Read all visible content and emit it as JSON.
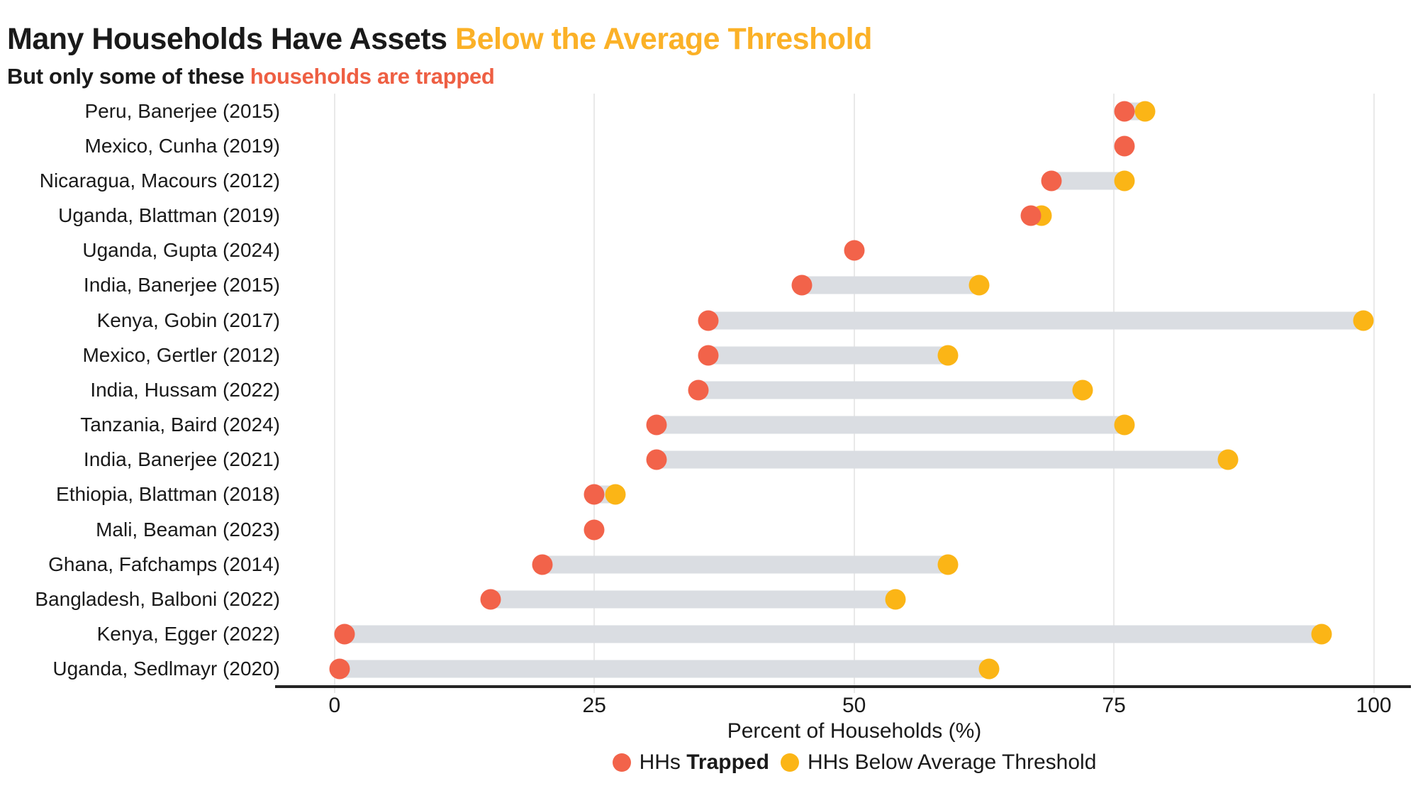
{
  "title": {
    "main": "Many Households Have Assets ",
    "highlight": "Below the Average Threshold"
  },
  "subtitle": {
    "main": "But only some of these ",
    "highlight": "households are trapped"
  },
  "colors": {
    "trapped": "#F2634A",
    "threshold": "#FBB516",
    "title_highlight": "#FBB127",
    "subtitle_highlight": "#EE5F43",
    "connector_bar": "#DADDE2",
    "gridline": "#E9E9E9",
    "axis_line": "#242424"
  },
  "axis": {
    "label": "Percent of Households (%)",
    "ticks": [
      0,
      25,
      50,
      75,
      100
    ]
  },
  "legend": {
    "items": [
      {
        "prefix": "HHs ",
        "bold": "Trapped",
        "color_key": "trapped"
      },
      {
        "prefix": "HHs Below Average Threshold",
        "bold": "",
        "color_key": "threshold"
      }
    ]
  },
  "chart_data": {
    "type": "scatter",
    "variant": "dumbbell",
    "title": "Many Households Have Assets Below the Average Threshold",
    "subtitle": "But only some of these households are trapped",
    "xlabel": "Percent of Households (%)",
    "ylabel": "",
    "xlim": [
      0,
      100
    ],
    "grid": "vertical-only",
    "legend_position": "bottom-center",
    "categories": [
      "Peru, Banerjee (2015)",
      "Mexico, Cunha (2019)",
      "Nicaragua, Macours (2012)",
      "Uganda, Blattman (2019)",
      "Uganda, Gupta (2024)",
      "India, Banerjee (2015)",
      "Kenya, Gobin (2017)",
      "Mexico, Gertler (2012)",
      "India, Hussam (2022)",
      "Tanzania, Baird (2024)",
      "India, Banerjee (2021)",
      "Ethiopia, Blattman (2018)",
      "Mali, Beaman (2023)",
      "Ghana, Fafchamps (2014)",
      "Bangladesh, Balboni (2022)",
      "Kenya, Egger (2022)",
      "Uganda, Sedlmayr (2020)"
    ],
    "series": [
      {
        "name": "HHs Trapped",
        "values": [
          76,
          76,
          69,
          67,
          50,
          45,
          36,
          36,
          35,
          31,
          31,
          25,
          25,
          20,
          15,
          1,
          0.5
        ]
      },
      {
        "name": "HHs Below Average Threshold",
        "values": [
          78,
          null,
          76,
          68,
          null,
          62,
          99,
          59,
          72,
          76,
          86,
          27,
          null,
          59,
          54,
          95,
          63
        ]
      }
    ]
  }
}
